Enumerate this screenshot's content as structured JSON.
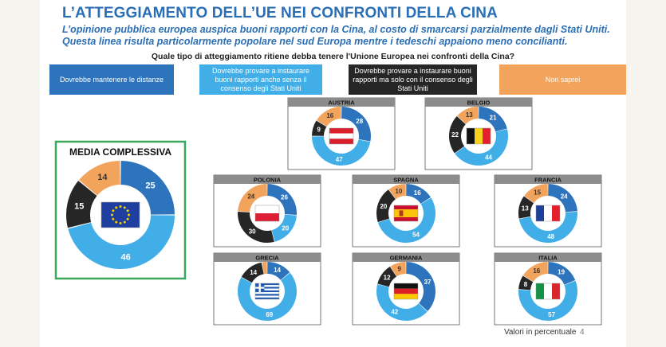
{
  "title": "L’ATTEGGIAMENTO DELL’UE NEI CONFRONTI DELLA CINA",
  "subtitle": "L’opinione pubblica europea auspica buoni rapporti con la Cina, al costo di smarcarsi parzialmente dagli Stati Uniti. Questa linea risulta particolarmente popolare nel sud Europa mentre i tedeschi appaiono meno concilianti.",
  "question": "Quale tipo di atteggiamento ritiene debba tenere l'Unione Europea nei confronti della Cina?",
  "legend": [
    {
      "label": "Dovrebbe mantenere le distanze",
      "color": "#2e74bd"
    },
    {
      "label": "Dovrebbe provare a instaurare buoni rapporti anche senza il consenso degli Stati Uniti",
      "color": "#41aee8"
    },
    {
      "label": "Dovrebbe provare a instaurare buoni rapporti ma solo con il consenso degli Stati Uniti",
      "color": "#262626"
    },
    {
      "label": "Non saprei",
      "color": "#f2a45c"
    }
  ],
  "footer": {
    "note": "Valori in percentuale",
    "page": "4"
  },
  "chart_data": {
    "type": "pie",
    "variant": "donut",
    "series_order": [
      "distanze",
      "senza_usa",
      "con_usa",
      "non_saprei"
    ],
    "colors": {
      "distanze": "#2e74bd",
      "senza_usa": "#41aee8",
      "con_usa": "#262626",
      "non_saprei": "#f2a45c",
      "map_grey": "#8c8c8c"
    },
    "overall": {
      "label": "MEDIA COMPLESSIVA",
      "flag": "eu",
      "values": [
        25,
        46,
        15,
        14
      ],
      "labels": [
        "25",
        "46",
        "15",
        "14"
      ]
    },
    "countries": [
      {
        "name": "AUSTRIA",
        "flag": "austria",
        "values": [
          28,
          47,
          9,
          16
        ],
        "labels": [
          "28",
          "47",
          "9",
          "16"
        ]
      },
      {
        "name": "BELGIO",
        "flag": "belgio",
        "values": [
          21,
          44,
          22,
          13
        ],
        "labels": [
          "21",
          "44",
          "22",
          "13"
        ]
      },
      {
        "name": "POLONIA",
        "flag": "polonia",
        "values": [
          26,
          20,
          30,
          24
        ],
        "labels": [
          "26",
          "20",
          "30",
          "24"
        ]
      },
      {
        "name": "SPAGNA",
        "flag": "spagna",
        "values": [
          16,
          54,
          20,
          10
        ],
        "labels": [
          "16",
          "54",
          "20",
          "10"
        ]
      },
      {
        "name": "FRANCIA",
        "flag": "francia",
        "values": [
          24,
          48,
          13,
          15
        ],
        "labels": [
          "24",
          "48",
          "13",
          "15"
        ]
      },
      {
        "name": "GRECIA",
        "flag": "grecia",
        "values": [
          14,
          69,
          14,
          3
        ],
        "labels": [
          "14",
          "69",
          "14",
          ""
        ]
      },
      {
        "name": "GERMANIA",
        "flag": "germania",
        "values": [
          37,
          42,
          12,
          9
        ],
        "labels": [
          "37",
          "42",
          "12",
          "9"
        ]
      },
      {
        "name": "ITALIA",
        "flag": "italia",
        "values": [
          19,
          57,
          8,
          16
        ],
        "labels": [
          "19",
          "57",
          "8",
          "16"
        ]
      }
    ]
  }
}
